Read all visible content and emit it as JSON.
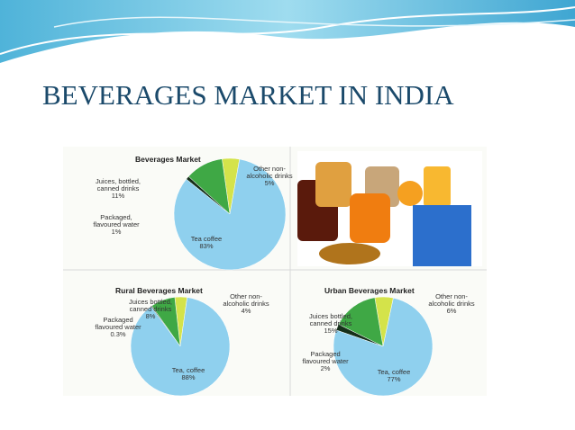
{
  "slide_title": "BEVERAGES MARKET IN INDIA",
  "chart_data": [
    {
      "type": "pie",
      "title": "Beverages Market",
      "categories": [
        "Other non-alcoholic drinks",
        "Juices, bottled, canned drinks",
        "Packaged, flavoured water",
        "Tea coffee"
      ],
      "values": [
        5,
        11,
        1,
        83
      ],
      "value_labels": [
        "5%",
        "11%",
        "1%",
        "83%"
      ],
      "colors": [
        "#d4e34a",
        "#3fa845",
        "#16301a",
        "#8fd0ee"
      ]
    },
    {
      "type": "pie",
      "title": "Rural Beverages Market",
      "categories": [
        "Other non-alcoholic drinks",
        "Juices bottled, canned drinks",
        "Packaged flavoured water",
        "Tea, coffee"
      ],
      "values": [
        4,
        8,
        0.3,
        88
      ],
      "value_labels": [
        "4%",
        "8%",
        "0.3%",
        "88%"
      ],
      "colors": [
        "#d4e34a",
        "#3fa845",
        "#16301a",
        "#8fd0ee"
      ]
    },
    {
      "type": "pie",
      "title": "Urban Beverages Market",
      "categories": [
        "Other non-alcoholic drinks",
        "Juices bottled, canned drinks",
        "Packaged flavoured water",
        "Tea, coffee"
      ],
      "values": [
        6,
        15,
        2,
        77
      ],
      "value_labels": [
        "6%",
        "15%",
        "2%",
        "77%"
      ],
      "colors": [
        "#d4e34a",
        "#3fa845",
        "#16301a",
        "#8fd0ee"
      ]
    }
  ]
}
